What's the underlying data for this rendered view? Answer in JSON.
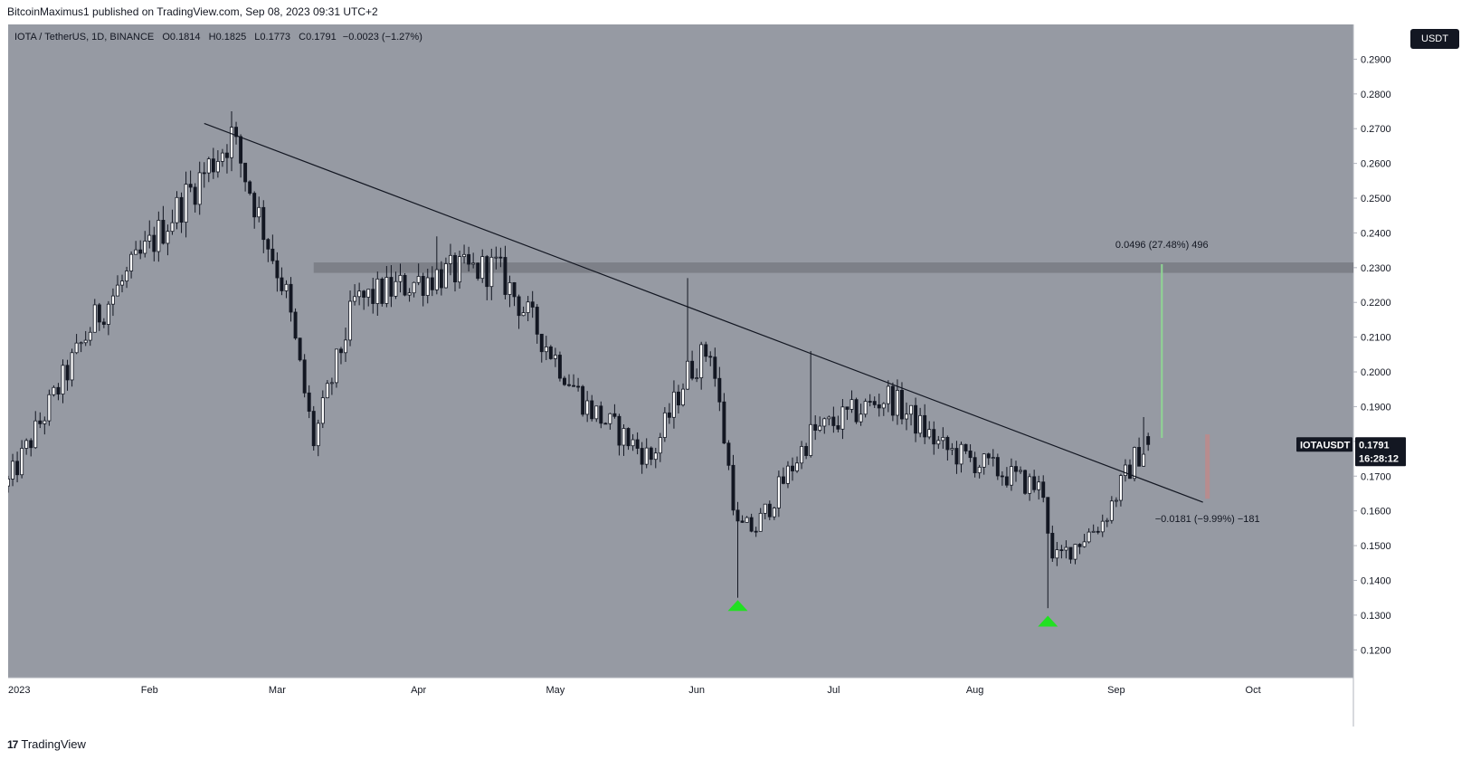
{
  "header": {
    "publish_text": "BitcoinMaximus1 published on TradingView.com, Sep 08, 2023 09:31 UTC+2"
  },
  "symbol": {
    "name": "IOTA / TetherUS, 1D, BINANCE",
    "open_key": "O",
    "open": "0.1814",
    "high_key": "H",
    "high": "0.1825",
    "low_key": "L",
    "low": "0.1773",
    "close_key": "C",
    "close": "0.1791",
    "change": "−0.0023 (−1.27%)"
  },
  "currency": "USDT",
  "price_badge": {
    "ticker": "IOTAUSDT",
    "price": "0.1791",
    "countdown": "16:28:12"
  },
  "footer": {
    "brand": "TradingView",
    "logo_glyph": "17"
  },
  "colors": {
    "chart_bg": "#969aa3",
    "axis_bg": "#ffffff",
    "candle_up": "#ffffff",
    "candle_down": "#131722",
    "resistance_zone": "#7d8088",
    "trendline": "#131722",
    "target_up": "#8fd694",
    "target_down": "#b88c8e",
    "support_arrow": "#22e022"
  },
  "chart_data": {
    "type": "candlestick",
    "title": "",
    "xlabel": "",
    "ylabel": "",
    "ylim": [
      0.112,
      0.3
    ],
    "y_ticks": [
      "0.2900",
      "0.2800",
      "0.2700",
      "0.2600",
      "0.2500",
      "0.2400",
      "0.2300",
      "0.2200",
      "0.2100",
      "0.2000",
      "0.1900",
      "0.1800",
      "0.1700",
      "0.1600",
      "0.1500",
      "0.1400",
      "0.1300",
      "0.1200"
    ],
    "x_tick_labels": [
      "2023",
      "Feb",
      "Mar",
      "Apr",
      "May",
      "Jun",
      "Jul",
      "Aug",
      "Sep",
      "Oct"
    ],
    "x_tick_dates": [
      "2023-01-01",
      "2023-02-01",
      "2023-03-01",
      "2023-04-01",
      "2023-05-01",
      "2023-06-01",
      "2023-07-01",
      "2023-08-01",
      "2023-09-01",
      "2023-10-01"
    ],
    "x_range": [
      "2023-01-01",
      "2023-10-23"
    ],
    "key_closes": [
      {
        "date": "2023-01-01",
        "close": 0.168
      },
      {
        "date": "2023-01-20",
        "close": 0.215
      },
      {
        "date": "2023-02-19",
        "close": 0.268
      },
      {
        "date": "2023-03-03",
        "close": 0.222
      },
      {
        "date": "2023-03-09",
        "close": 0.18
      },
      {
        "date": "2023-03-18",
        "close": 0.22
      },
      {
        "date": "2023-04-05",
        "close": 0.228
      },
      {
        "date": "2023-04-18",
        "close": 0.23
      },
      {
        "date": "2023-05-08",
        "close": 0.19
      },
      {
        "date": "2023-05-22",
        "close": 0.175
      },
      {
        "date": "2023-05-30",
        "close": 0.2
      },
      {
        "date": "2023-06-04",
        "close": 0.207
      },
      {
        "date": "2023-06-10",
        "close": 0.155
      },
      {
        "date": "2023-06-14",
        "close": 0.155
      },
      {
        "date": "2023-06-26",
        "close": 0.182
      },
      {
        "date": "2023-07-13",
        "close": 0.193
      },
      {
        "date": "2023-07-25",
        "close": 0.178
      },
      {
        "date": "2023-08-16",
        "close": 0.166
      },
      {
        "date": "2023-08-18",
        "close": 0.145
      },
      {
        "date": "2023-08-29",
        "close": 0.157
      },
      {
        "date": "2023-09-05",
        "close": 0.175
      },
      {
        "date": "2023-09-08",
        "close": 0.1791
      }
    ],
    "notable_wicks": [
      {
        "date": "2023-02-19",
        "high": 0.275
      },
      {
        "date": "2023-04-05",
        "high": 0.239
      },
      {
        "date": "2023-05-30",
        "high": 0.227
      },
      {
        "date": "2023-06-10",
        "low": 0.135
      },
      {
        "date": "2023-06-26",
        "high": 0.206
      },
      {
        "date": "2023-08-17",
        "low": 0.132
      },
      {
        "date": "2023-09-07",
        "high": 0.187
      }
    ],
    "annotations": {
      "resistance_zone": {
        "from": "2023-03-09",
        "low": 0.2285,
        "high": 0.2315
      },
      "trendline": {
        "start": {
          "date": "2023-02-13",
          "price": 0.2715
        },
        "end": {
          "date": "2023-09-20",
          "price": 0.1625
        }
      },
      "target_up": {
        "date": "2023-09-11",
        "from": 0.181,
        "to": 0.231,
        "label": "0.0496 (27.48%) 496"
      },
      "target_down": {
        "date": "2023-09-21",
        "from": 0.182,
        "to": 0.1635,
        "label": "−0.0181 (−9.99%) −181"
      },
      "support_arrows": [
        {
          "date": "2023-06-10",
          "price": 0.1325
        },
        {
          "date": "2023-08-17",
          "price": 0.128
        }
      ]
    }
  }
}
